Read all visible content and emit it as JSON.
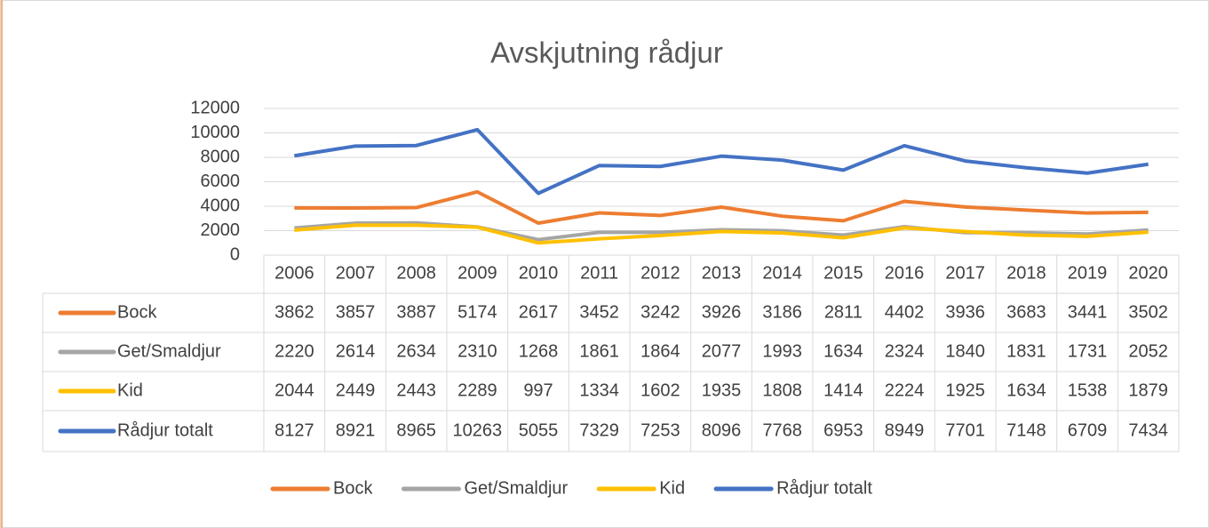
{
  "chart_data": {
    "type": "line",
    "title": "Avskjutning rådjur",
    "categories": [
      "2006",
      "2007",
      "2008",
      "2009",
      "2010",
      "2011",
      "2012",
      "2013",
      "2014",
      "2015",
      "2016",
      "2017",
      "2018",
      "2019",
      "2020"
    ],
    "series": [
      {
        "name": "Bock",
        "color": "#ed7d31",
        "values": [
          3862,
          3857,
          3887,
          5174,
          2617,
          3452,
          3242,
          3926,
          3186,
          2811,
          4402,
          3936,
          3683,
          3441,
          3502
        ]
      },
      {
        "name": "Get/Smaldjur",
        "color": "#a5a5a5",
        "values": [
          2220,
          2614,
          2634,
          2310,
          1268,
          1861,
          1864,
          2077,
          1993,
          1634,
          2324,
          1840,
          1831,
          1731,
          2052
        ]
      },
      {
        "name": "Kid",
        "color": "#ffc000",
        "values": [
          2044,
          2449,
          2443,
          2289,
          997,
          1334,
          1602,
          1935,
          1808,
          1414,
          2224,
          1925,
          1634,
          1538,
          1879
        ]
      },
      {
        "name": "Rådjur totalt",
        "color": "#4472c4",
        "values": [
          8127,
          8921,
          8965,
          10263,
          5055,
          7329,
          7253,
          8096,
          7768,
          6953,
          8949,
          7701,
          7148,
          6709,
          7434
        ]
      }
    ],
    "ylim": [
      0,
      12000
    ],
    "yticks": [
      0,
      2000,
      4000,
      6000,
      8000,
      10000,
      12000
    ],
    "grid": true,
    "legend": "bottom"
  }
}
